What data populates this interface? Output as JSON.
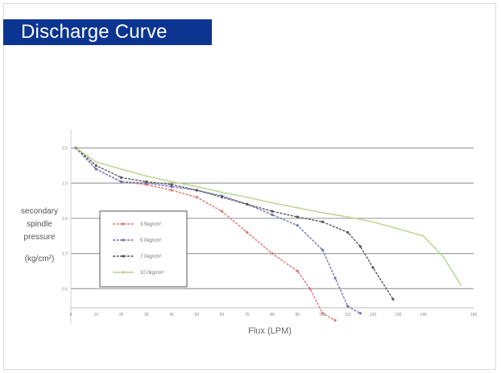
{
  "title": "Discharge Curve",
  "chart_data": {
    "type": "line",
    "title": "Discharge Curve",
    "xlabel": "Flux (LPM)",
    "ylabel_lines": [
      "secondary",
      "spindle",
      "pressure",
      "(kg/cm²)"
    ],
    "xlim": [
      0,
      160
    ],
    "ylim": [
      0,
      3.0
    ],
    "x_ticks": [
      0,
      10,
      20,
      30,
      40,
      50,
      60,
      70,
      80,
      90,
      100,
      110,
      120,
      130,
      140,
      150,
      160
    ],
    "y_ticks": [
      0.5,
      1.0,
      1.5,
      2.0,
      2.5
    ],
    "grid": "horizontal",
    "legend_position": "left-center",
    "series": [
      {
        "name": "3.5kg/cm²",
        "color": "#e0736f",
        "x": [
          2,
          10,
          20,
          30,
          40,
          50,
          60,
          70,
          80,
          90,
          95,
          100,
          105
        ],
        "y": [
          2.5,
          2.2,
          2.02,
          1.98,
          1.9,
          1.8,
          1.6,
          1.3,
          1.0,
          0.75,
          0.5,
          0.15,
          0.05
        ]
      },
      {
        "name": "5.0kg/cm²",
        "color": "#6f72b8",
        "x": [
          2,
          10,
          20,
          30,
          40,
          50,
          60,
          70,
          80,
          90,
          100,
          105,
          110,
          115
        ],
        "y": [
          2.5,
          2.2,
          2.02,
          2.0,
          1.95,
          1.9,
          1.82,
          1.7,
          1.55,
          1.4,
          1.05,
          0.65,
          0.25,
          0.15
        ]
      },
      {
        "name": "7.0kg/cm²",
        "color": "#555555",
        "x": [
          2,
          10,
          20,
          30,
          40,
          50,
          60,
          70,
          80,
          90,
          100,
          110,
          115,
          120,
          128
        ],
        "y": [
          2.5,
          2.25,
          2.08,
          2.02,
          1.98,
          1.9,
          1.8,
          1.7,
          1.6,
          1.52,
          1.45,
          1.3,
          1.1,
          0.8,
          0.35
        ]
      },
      {
        "name": "10.0kg/cm²",
        "color": "#b7d48a",
        "x": [
          2,
          10,
          20,
          30,
          40,
          50,
          60,
          70,
          80,
          90,
          100,
          110,
          120,
          130,
          140,
          148,
          155
        ],
        "y": [
          2.5,
          2.3,
          2.2,
          2.1,
          2.02,
          1.95,
          1.87,
          1.8,
          1.72,
          1.65,
          1.58,
          1.52,
          1.45,
          1.35,
          1.25,
          0.95,
          0.55
        ]
      }
    ]
  }
}
